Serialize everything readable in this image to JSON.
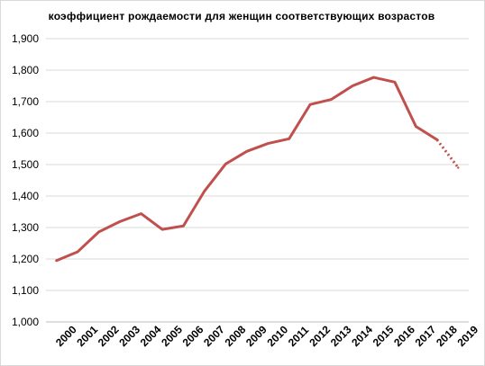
{
  "chart_data": {
    "type": "line",
    "title": "коэффициент рождаемости для женщин соответствующих  возрастов",
    "xlabel": "",
    "ylabel": "",
    "categories": [
      "2000",
      "2001",
      "2002",
      "2003",
      "2004",
      "2005",
      "2006",
      "2007",
      "2008",
      "2009",
      "2010",
      "2011",
      "2012",
      "2013",
      "2014",
      "2015",
      "2016",
      "2017",
      "2018",
      "2019"
    ],
    "series": [
      {
        "values": [
          1.195,
          1.223,
          1.286,
          1.319,
          1.344,
          1.294,
          1.305,
          1.416,
          1.502,
          1.542,
          1.567,
          1.582,
          1.691,
          1.707,
          1.75,
          1.777,
          1.762,
          1.621,
          1.579,
          1.49
        ],
        "color": "#c0504d",
        "dashed_from_index": 18
      }
    ],
    "y_tick_labels": [
      "1,000",
      "1,100",
      "1,200",
      "1,300",
      "1,400",
      "1,500",
      "1,600",
      "1,700",
      "1,800",
      "1,900"
    ],
    "ylim": [
      1.0,
      1.9
    ],
    "grid": true,
    "legend": "none"
  }
}
